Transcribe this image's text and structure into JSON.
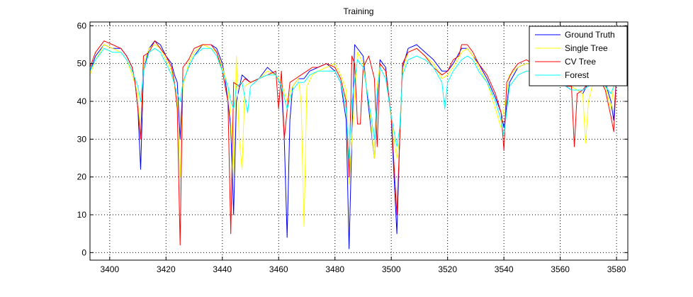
{
  "figure_bg": "#ffffff",
  "chart_data": {
    "type": "line",
    "title": "Training",
    "xlabel": "",
    "ylabel": "",
    "xlim": [
      3393,
      3584
    ],
    "ylim": [
      -2,
      61
    ],
    "xticks": [
      3400,
      3420,
      3440,
      3460,
      3480,
      3500,
      3520,
      3540,
      3560,
      3580
    ],
    "yticks": [
      0,
      10,
      20,
      30,
      40,
      50,
      60
    ],
    "grid": true,
    "legend_position": "top-right",
    "series": [
      {
        "name": "Ground Truth",
        "color": "#0000ff",
        "x": [
          3393,
          3395,
          3398,
          3401,
          3404,
          3406,
          3408,
          3409,
          3410,
          3411,
          3412,
          3414,
          3416,
          3418,
          3420,
          3422,
          3423,
          3424,
          3425,
          3426,
          3428,
          3430,
          3433,
          3436,
          3438,
          3440,
          3441,
          3442,
          3443,
          3444,
          3445,
          3447,
          3450,
          3453,
          3456,
          3459,
          3461,
          3462,
          3463,
          3464,
          3465,
          3467,
          3469,
          3471,
          3474,
          3477,
          3480,
          3482,
          3484,
          3485,
          3486,
          3487,
          3490,
          3492,
          3494,
          3495,
          3496,
          3498,
          3500,
          3502,
          3503,
          3504,
          3506,
          3509,
          3512,
          3515,
          3518,
          3520,
          3522,
          3525,
          3527,
          3529,
          3531,
          3534,
          3537,
          3539,
          3540,
          3542,
          3545,
          3548,
          3550,
          3553,
          3556,
          3558,
          3560,
          3562,
          3564,
          3566,
          3568,
          3570,
          3572,
          3574,
          3576,
          3578,
          3579,
          3580,
          3582,
          3584
        ],
        "y": [
          48,
          52,
          55,
          54,
          54,
          52,
          49,
          45,
          38,
          22,
          48,
          54,
          56,
          55,
          52,
          50,
          47,
          45,
          30,
          45,
          49,
          52,
          55,
          55,
          54,
          50,
          46,
          40,
          33,
          10,
          40,
          47,
          45,
          46,
          49,
          47,
          44,
          30,
          4,
          35,
          44,
          46,
          46,
          48,
          49,
          50,
          48,
          45,
          35,
          1,
          30,
          55,
          52,
          38,
          25,
          40,
          51,
          49,
          35,
          5,
          30,
          49,
          54,
          55,
          53,
          51,
          48,
          48,
          50,
          54,
          54,
          52,
          50,
          46,
          41,
          37,
          33,
          45,
          49,
          50,
          50,
          49,
          48,
          47,
          45,
          44,
          43,
          43,
          42,
          45,
          46,
          47,
          45,
          40,
          35,
          47,
          48,
          50
        ]
      },
      {
        "name": "Single Tree",
        "color": "#ffff00",
        "x": [
          3393,
          3395,
          3398,
          3401,
          3404,
          3406,
          3408,
          3410,
          3411,
          3412,
          3414,
          3416,
          3418,
          3420,
          3422,
          3424,
          3425,
          3426,
          3428,
          3430,
          3433,
          3436,
          3438,
          3440,
          3442,
          3443,
          3444,
          3445,
          3446,
          3447,
          3448,
          3450,
          3453,
          3456,
          3459,
          3461,
          3463,
          3465,
          3467,
          3468,
          3469,
          3470,
          3472,
          3474,
          3477,
          3480,
          3482,
          3484,
          3485,
          3486,
          3488,
          3490,
          3492,
          3494,
          3495,
          3496,
          3498,
          3500,
          3502,
          3503,
          3504,
          3506,
          3509,
          3512,
          3515,
          3518,
          3520,
          3522,
          3525,
          3527,
          3529,
          3531,
          3534,
          3537,
          3539,
          3540,
          3542,
          3545,
          3548,
          3550,
          3553,
          3556,
          3558,
          3560,
          3562,
          3564,
          3566,
          3568,
          3569,
          3570,
          3572,
          3574,
          3576,
          3578,
          3579,
          3580,
          3582,
          3584
        ],
        "y": [
          47,
          51,
          55,
          54,
          53,
          51,
          47,
          42,
          30,
          50,
          54,
          55,
          54,
          51,
          48,
          40,
          20,
          44,
          50,
          53,
          55,
          54,
          53,
          49,
          44,
          35,
          20,
          52,
          30,
          22,
          44,
          45,
          46,
          48,
          47,
          45,
          40,
          44,
          46,
          40,
          7,
          44,
          47,
          48,
          49,
          50,
          47,
          43,
          18,
          30,
          53,
          50,
          40,
          25,
          44,
          50,
          48,
          35,
          25,
          30,
          48,
          53,
          54,
          52,
          50,
          46,
          47,
          49,
          53,
          54,
          52,
          49,
          45,
          38,
          33,
          38,
          47,
          49,
          50,
          50,
          49,
          47,
          46,
          45,
          45,
          44,
          43,
          42,
          29,
          40,
          46,
          47,
          44,
          38,
          44,
          47,
          48,
          49
        ]
      },
      {
        "name": "CV Tree",
        "color": "#ff0000",
        "x": [
          3393,
          3395,
          3398,
          3401,
          3404,
          3406,
          3408,
          3409,
          3410,
          3411,
          3412,
          3414,
          3416,
          3418,
          3420,
          3422,
          3423,
          3424,
          3425,
          3426,
          3428,
          3430,
          3433,
          3436,
          3438,
          3440,
          3441,
          3442,
          3443,
          3444,
          3446,
          3448,
          3450,
          3453,
          3456,
          3459,
          3460,
          3461,
          3462,
          3464,
          3466,
          3468,
          3470,
          3472,
          3474,
          3477,
          3480,
          3482,
          3484,
          3485,
          3486,
          3487,
          3488,
          3489,
          3490,
          3492,
          3494,
          3495,
          3496,
          3498,
          3500,
          3502,
          3503,
          3504,
          3506,
          3509,
          3512,
          3515,
          3518,
          3520,
          3522,
          3524,
          3525,
          3527,
          3529,
          3531,
          3534,
          3537,
          3539,
          3540,
          3541,
          3543,
          3545,
          3548,
          3550,
          3553,
          3556,
          3558,
          3560,
          3562,
          3564,
          3565,
          3566,
          3568,
          3570,
          3572,
          3574,
          3576,
          3578,
          3579,
          3580,
          3582,
          3584
        ],
        "y": [
          49,
          53,
          56,
          55,
          54,
          52,
          49,
          45,
          38,
          30,
          52,
          53,
          56,
          54,
          52,
          49,
          45,
          38,
          2,
          49,
          51,
          54,
          55,
          55,
          53,
          48,
          44,
          40,
          5,
          45,
          44,
          46,
          45,
          46,
          47,
          48,
          38,
          48,
          30,
          45,
          46,
          47,
          48,
          49,
          49,
          50,
          49,
          46,
          40,
          20,
          52,
          50,
          34,
          34,
          49,
          52,
          46,
          28,
          50,
          48,
          36,
          10,
          30,
          50,
          53,
          54,
          52,
          49,
          47,
          48,
          51,
          52,
          55,
          55,
          53,
          50,
          47,
          42,
          37,
          27,
          45,
          48,
          50,
          51,
          50,
          49,
          48,
          47,
          46,
          44,
          44,
          28,
          42,
          43,
          45,
          47,
          46,
          43,
          36,
          32,
          47,
          48,
          50
        ]
      },
      {
        "name": "Forest",
        "color": "#00ffff",
        "x": [
          3393,
          3395,
          3398,
          3401,
          3404,
          3406,
          3408,
          3410,
          3411,
          3412,
          3414,
          3416,
          3418,
          3420,
          3422,
          3424,
          3425,
          3426,
          3428,
          3430,
          3433,
          3436,
          3438,
          3440,
          3442,
          3443,
          3444,
          3445,
          3447,
          3449,
          3450,
          3453,
          3456,
          3459,
          3461,
          3463,
          3465,
          3467,
          3469,
          3471,
          3474,
          3477,
          3480,
          3482,
          3484,
          3485,
          3486,
          3488,
          3490,
          3492,
          3494,
          3495,
          3496,
          3498,
          3500,
          3502,
          3503,
          3504,
          3506,
          3509,
          3512,
          3515,
          3518,
          3519,
          3520,
          3522,
          3525,
          3527,
          3529,
          3531,
          3534,
          3537,
          3539,
          3540,
          3542,
          3545,
          3548,
          3550,
          3553,
          3556,
          3558,
          3560,
          3562,
          3564,
          3566,
          3568,
          3570,
          3572,
          3574,
          3576,
          3578,
          3580,
          3582,
          3584
        ],
        "y": [
          48,
          51,
          54,
          53,
          53,
          51,
          48,
          44,
          40,
          48,
          53,
          54,
          53,
          50,
          47,
          42,
          40,
          45,
          49,
          52,
          54,
          54,
          52,
          48,
          44,
          40,
          38,
          44,
          45,
          37,
          44,
          46,
          47,
          47,
          44,
          38,
          43,
          45,
          45,
          47,
          48,
          48,
          48,
          45,
          38,
          25,
          40,
          51,
          49,
          40,
          30,
          42,
          49,
          46,
          36,
          28,
          33,
          47,
          51,
          52,
          51,
          49,
          45,
          38,
          45,
          48,
          51,
          52,
          51,
          48,
          45,
          40,
          35,
          31,
          44,
          47,
          48,
          48,
          47,
          46,
          45,
          45,
          44,
          43,
          43,
          43,
          44,
          45,
          45,
          44,
          42,
          46,
          47,
          48
        ]
      }
    ]
  }
}
